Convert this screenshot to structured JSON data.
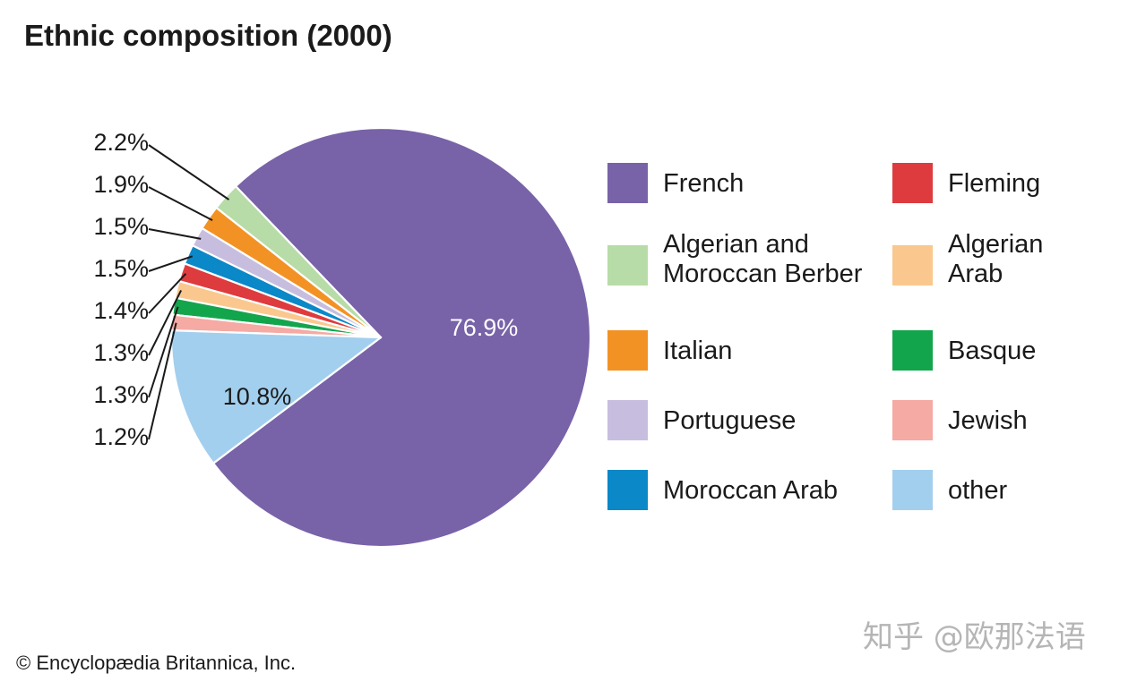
{
  "chart_data": {
    "type": "pie",
    "title": "Ethnic composition (2000)",
    "slices": [
      {
        "name": "French",
        "value": 76.9,
        "label": "76.9%",
        "color": "#7862a8"
      },
      {
        "name": "Algerian and Moroccan Berber",
        "value": 2.2,
        "label": "2.2%",
        "color": "#b8dca8"
      },
      {
        "name": "Italian",
        "value": 1.9,
        "label": "1.9%",
        "color": "#f39224"
      },
      {
        "name": "Portuguese",
        "value": 1.5,
        "label": "1.5%",
        "color": "#c7bedf"
      },
      {
        "name": "Moroccan Arab",
        "value": 1.5,
        "label": "1.5%",
        "color": "#0a88c8"
      },
      {
        "name": "Fleming",
        "value": 1.4,
        "label": "1.4%",
        "color": "#de3b3e"
      },
      {
        "name": "Algerian Arab",
        "value": 1.3,
        "label": "1.3%",
        "color": "#fac88e"
      },
      {
        "name": "Basque",
        "value": 1.3,
        "label": "1.3%",
        "color": "#13a54c"
      },
      {
        "name": "Jewish",
        "value": 1.2,
        "label": "1.2%",
        "color": "#f5aaa4"
      },
      {
        "name": "other",
        "value": 10.8,
        "label": "10.8%",
        "color": "#a3cfee"
      }
    ],
    "legend": {
      "placement": "right",
      "columns": [
        [
          "French",
          "Algerian and Moroccan Berber",
          "Italian",
          "Portuguese",
          "Moroccan Arab"
        ],
        [
          "Fleming",
          "Algerian Arab",
          "Basque",
          "Jewish",
          "other"
        ]
      ],
      "wrapped_labels": {
        "Algerian and Moroccan Berber": [
          "Algerian and",
          "Moroccan Berber"
        ],
        "Algerian Arab": [
          "Algerian",
          "Arab"
        ]
      }
    }
  },
  "footer": {
    "credit": "© Encyclopædia Britannica, Inc."
  },
  "watermark": {
    "text": "知乎 @欧那法语"
  }
}
